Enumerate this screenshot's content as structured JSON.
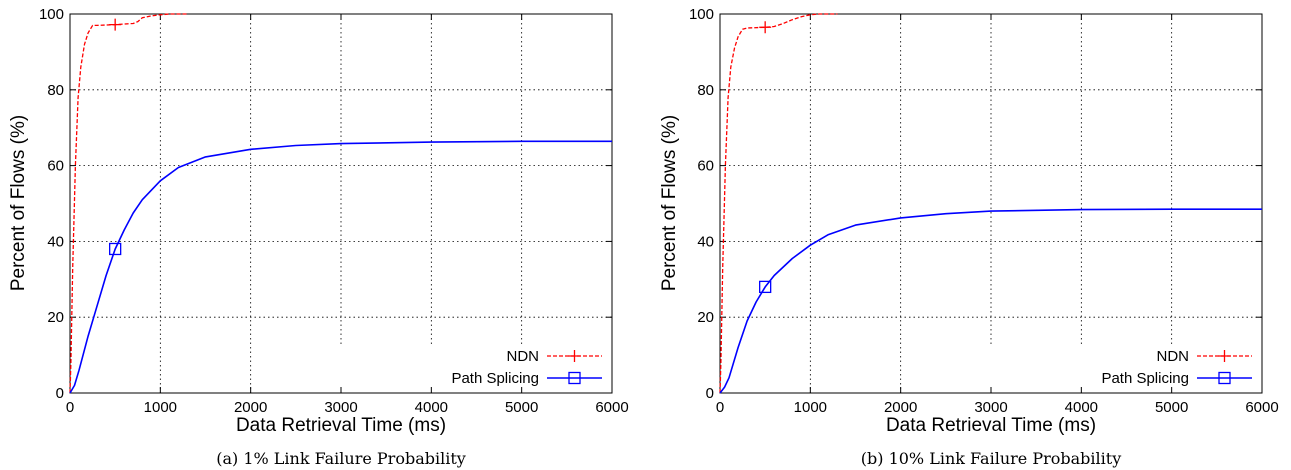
{
  "chart_data": [
    {
      "type": "line",
      "caption": "(a) 1% Link Failure Probability",
      "xlabel": "Data Retrieval Time (ms)",
      "ylabel": "Percent of Flows (%)",
      "xlim": [
        0,
        6000
      ],
      "ylim": [
        0,
        100
      ],
      "xticks": [
        "0",
        "1000",
        "2000",
        "3000",
        "4000",
        "5000",
        "6000"
      ],
      "yticks": [
        "0",
        "20",
        "40",
        "60",
        "80",
        "100"
      ],
      "grid": true,
      "legend_position": "bottom-right",
      "series": [
        {
          "name": "NDN",
          "color": "#ff0000",
          "style": "dashed",
          "marker": "plus",
          "marker_x": 500,
          "x": [
            0,
            10,
            30,
            60,
            90,
            120,
            160,
            200,
            250,
            300,
            500,
            700,
            750,
            800,
            900,
            1000,
            1100,
            1200,
            1300
          ],
          "y": [
            0,
            8,
            33,
            60,
            78,
            86,
            92,
            95,
            97,
            97,
            97.2,
            97.5,
            98,
            99,
            99.5,
            99.8,
            100,
            100,
            100
          ]
        },
        {
          "name": "Path Splicing",
          "color": "#0000ff",
          "style": "solid",
          "marker": "square",
          "marker_x": 500,
          "x": [
            0,
            50,
            100,
            200,
            300,
            400,
            500,
            600,
            700,
            800,
            1000,
            1200,
            1500,
            2000,
            2500,
            3000,
            4000,
            5000,
            6000
          ],
          "y": [
            0,
            2,
            6,
            15,
            23,
            31,
            38,
            43,
            47.5,
            51,
            56,
            59.5,
            62.3,
            64.3,
            65.3,
            65.8,
            66.2,
            66.4,
            66.4
          ]
        }
      ]
    },
    {
      "type": "line",
      "caption": "(b) 10% Link Failure Probability",
      "xlabel": "Data Retrieval Time (ms)",
      "ylabel": "Percent of Flows (%)",
      "xlim": [
        0,
        6000
      ],
      "ylim": [
        0,
        100
      ],
      "xticks": [
        "0",
        "1000",
        "2000",
        "3000",
        "4000",
        "5000",
        "6000"
      ],
      "yticks": [
        "0",
        "20",
        "40",
        "60",
        "80",
        "100"
      ],
      "grid": true,
      "legend_position": "bottom-right",
      "series": [
        {
          "name": "NDN",
          "color": "#ff0000",
          "style": "dashed",
          "marker": "plus",
          "marker_x": 500,
          "x": [
            0,
            10,
            30,
            60,
            90,
            120,
            160,
            200,
            250,
            300,
            500,
            600,
            700,
            800,
            900,
            1000,
            1100,
            1200,
            1300
          ],
          "y": [
            0,
            8,
            33,
            60,
            78,
            86,
            91,
            94,
            96,
            96.3,
            96.5,
            96.7,
            97.5,
            98.5,
            99.3,
            99.8,
            100,
            100,
            100
          ]
        },
        {
          "name": "Path Splicing",
          "color": "#0000ff",
          "style": "solid",
          "marker": "square",
          "marker_x": 500,
          "x": [
            0,
            50,
            100,
            200,
            300,
            400,
            500,
            600,
            800,
            1000,
            1200,
            1500,
            2000,
            2500,
            3000,
            4000,
            5000,
            6000
          ],
          "y": [
            0,
            1.5,
            4,
            12,
            19,
            24,
            28,
            31,
            35.5,
            39,
            41.8,
            44.3,
            46.2,
            47.3,
            48,
            48.4,
            48.5,
            48.5
          ]
        }
      ]
    }
  ]
}
